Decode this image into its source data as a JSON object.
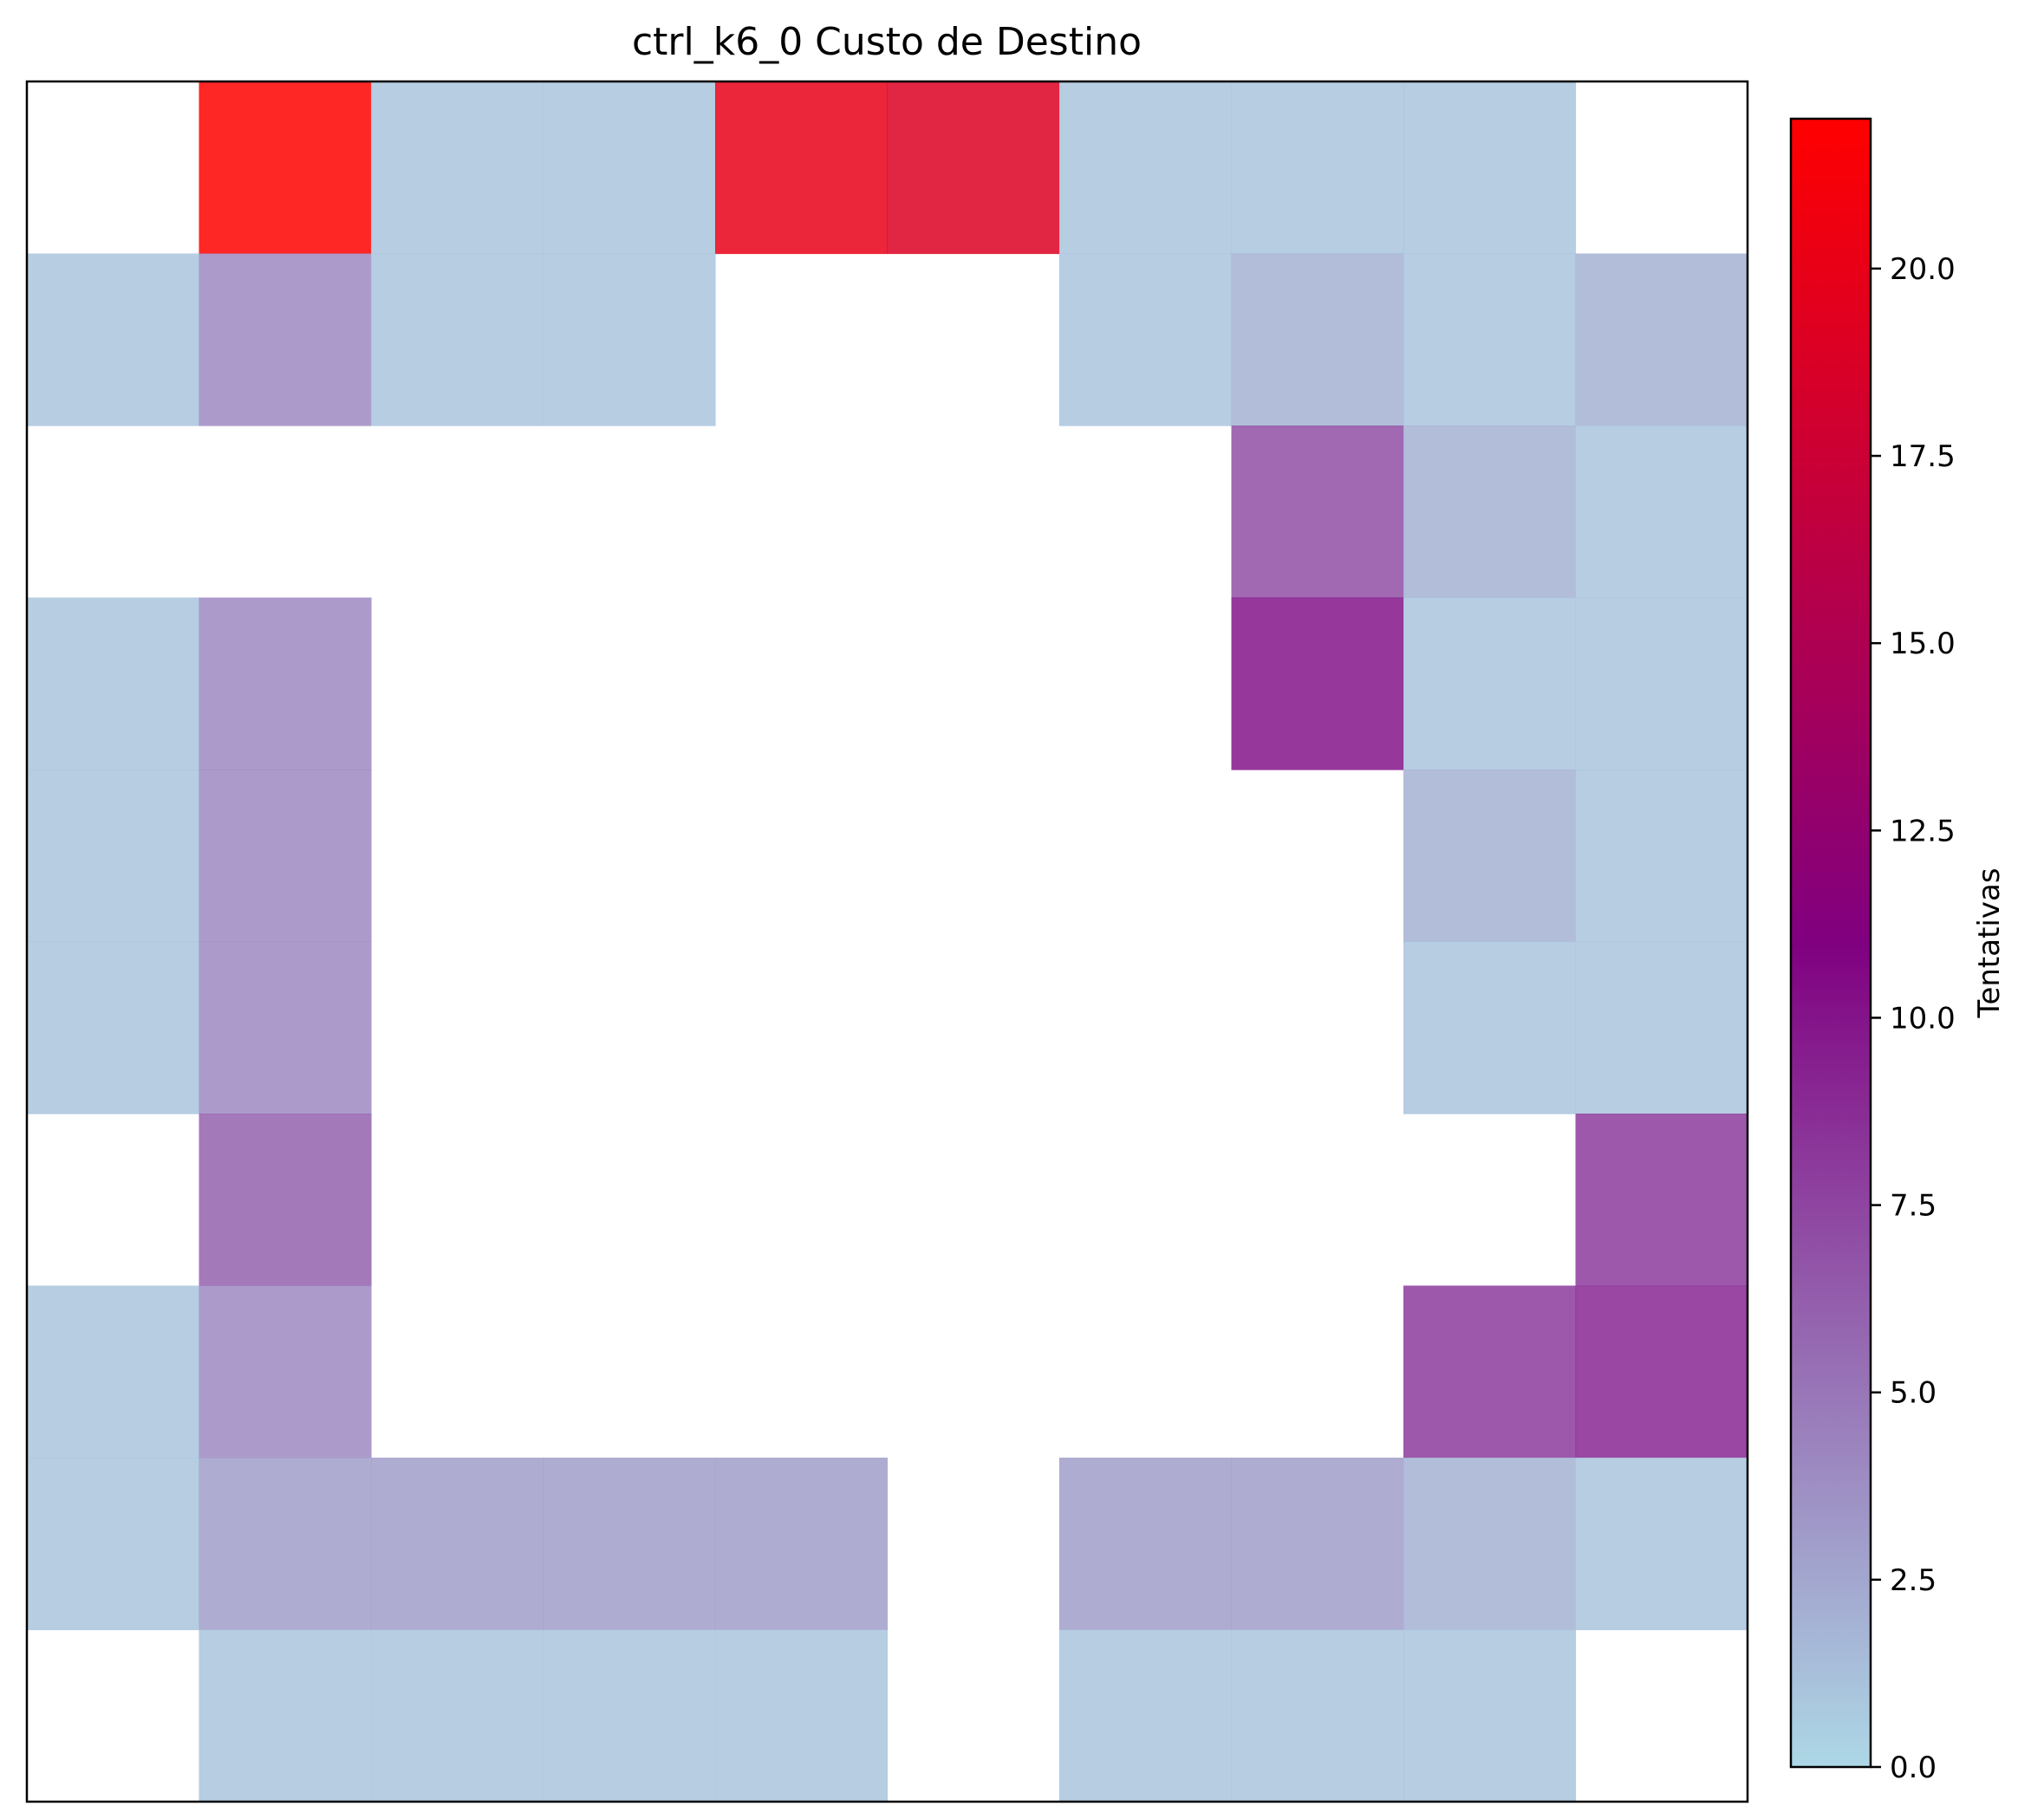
{
  "chart_data": {
    "type": "heatmap",
    "title": "ctrl_k6_0 Custo de Destino",
    "colorbar": {
      "label": "Tentativas",
      "vmin": 0,
      "vmax": 22,
      "ticks": [
        0.0,
        2.5,
        5.0,
        7.5,
        10.0,
        12.5,
        15.0,
        17.5,
        20.0
      ],
      "tick_labels": [
        "0.0",
        "2.5",
        "5.0",
        "7.5",
        "10.0",
        "12.5",
        "15.0",
        "17.5",
        "20.0"
      ],
      "colormap": [
        {
          "stop": 0.0,
          "color": "#add8e6"
        },
        {
          "stop": 0.5,
          "color": "#800080"
        },
        {
          "stop": 1.0,
          "color": "#ff0000"
        }
      ],
      "placement": "right"
    },
    "rows": 10,
    "cols": 10,
    "grid": false,
    "x_ticks": [],
    "y_ticks": [],
    "values": [
      [
        null,
        22,
        1,
        1,
        20,
        19,
        1,
        1,
        1,
        null
      ],
      [
        1,
        4,
        1,
        1,
        null,
        null,
        1,
        2,
        1,
        2
      ],
      [
        null,
        null,
        null,
        null,
        null,
        null,
        null,
        7,
        2,
        1
      ],
      [
        1,
        4,
        null,
        null,
        null,
        null,
        null,
        10,
        1,
        1
      ],
      [
        1,
        4,
        null,
        null,
        null,
        null,
        null,
        null,
        2,
        1
      ],
      [
        1,
        4,
        null,
        null,
        null,
        null,
        null,
        null,
        1,
        1
      ],
      [
        null,
        6,
        null,
        null,
        null,
        null,
        null,
        null,
        null,
        8
      ],
      [
        1,
        4,
        null,
        null,
        null,
        null,
        null,
        null,
        8,
        9
      ],
      [
        1,
        3,
        3,
        3,
        3,
        null,
        3,
        3,
        2,
        1
      ],
      [
        null,
        1,
        1,
        1,
        1,
        null,
        1,
        1,
        1,
        null
      ]
    ]
  }
}
